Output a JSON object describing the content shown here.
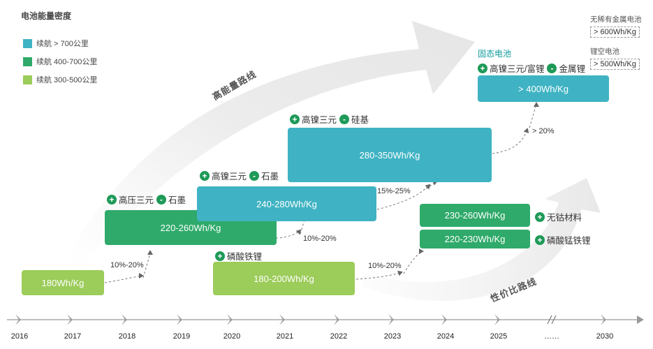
{
  "title": "电池能量密度",
  "legend": [
    {
      "label": "续航 > 700公里",
      "color": "#3fb3c3"
    },
    {
      "label": "续航 400-700公里",
      "color": "#2faa6a"
    },
    {
      "label": "续航 300-500公里",
      "color": "#9ccc5a"
    }
  ],
  "routes": {
    "high_energy": "高能量路线",
    "cost_performance": "性价比路线"
  },
  "boxes": {
    "b2016": "180Wh/Kg",
    "b2018": "220-260Wh/Kg",
    "b2019": "240-280Wh/Kg",
    "b2020": "180-200Wh/Kg",
    "b2021": "280-350Wh/Kg",
    "b2024a": "230-260Wh/Kg",
    "b2024b": "220-230Wh/Kg",
    "b2025": "> 400Wh/Kg"
  },
  "tags": {
    "t2018": {
      "plus": "高压三元",
      "minus": "石墨"
    },
    "t2019": {
      "plus": "高镍三元",
      "minus": "石墨"
    },
    "t2021": {
      "plus": "高镍三元",
      "minus": "硅基"
    },
    "t2020": {
      "plus": "磷酸铁锂"
    },
    "t2025": {
      "plus": "高镍三元/富锂",
      "minus": "金属锂"
    },
    "t2024a": {
      "plus": "无钴材料"
    },
    "t2024b": {
      "plus": "磷酸锰铁锂"
    }
  },
  "solid_state": "固态电池",
  "future": {
    "anode_free_label": "无稀有金属电池",
    "anode_free_value": "> 600Wh/Kg",
    "li_air_label": "锂空电池",
    "li_air_value": "> 500Wh/Kg"
  },
  "percents": {
    "p1": "10%-20%",
    "p2": "10%-20%",
    "p3": "15%-25%",
    "p4": "10%-20%",
    "p5": "> 20%"
  },
  "axis": {
    "years": [
      "2016",
      "2017",
      "2018",
      "2019",
      "2020",
      "2021",
      "2022",
      "2023",
      "2024",
      "2025",
      "……",
      "2030"
    ]
  }
}
